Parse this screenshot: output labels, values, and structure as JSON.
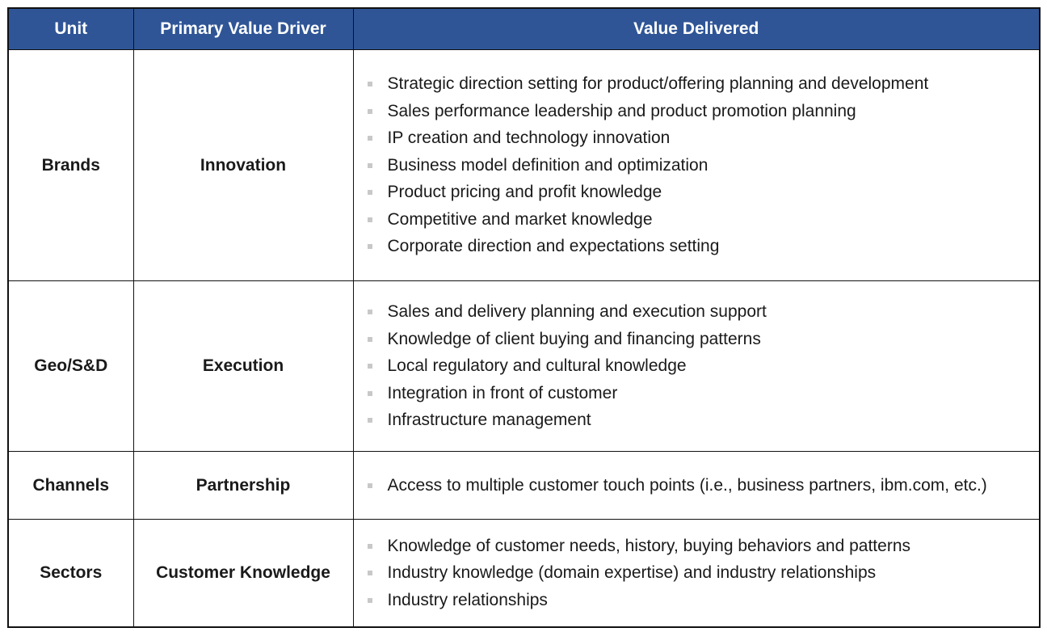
{
  "table": {
    "headers": [
      "Unit",
      "Primary Value Driver",
      "Value Delivered"
    ],
    "rows": [
      {
        "unit": "Brands",
        "driver": "Innovation",
        "values": [
          "Strategic direction setting for product/offering planning and development",
          "Sales performance leadership and product promotion planning",
          "IP creation and technology innovation",
          "Business model definition and optimization",
          "Product pricing and profit knowledge",
          "Competitive and market knowledge",
          "Corporate direction and expectations setting"
        ]
      },
      {
        "unit": "Geo/S&D",
        "driver": "Execution",
        "values": [
          "Sales and delivery planning and execution support",
          "Knowledge of client buying and financing patterns",
          "Local regulatory and cultural knowledge",
          "Integration in front of customer",
          "Infrastructure management"
        ]
      },
      {
        "unit": "Channels",
        "driver": "Partnership",
        "values": [
          "Access to multiple customer touch points (i.e., business partners, ibm.com, etc.)"
        ]
      },
      {
        "unit": "Sectors",
        "driver": "Customer Knowledge",
        "values": [
          "Knowledge of customer needs, history, buying behaviors and patterns",
          "Industry knowledge (domain expertise) and industry relationships",
          "Industry relationships"
        ]
      }
    ]
  },
  "colors": {
    "header_bg": "#2f5596",
    "header_text": "#ffffff",
    "border": "#111111",
    "bullet": "#c8c8c8"
  }
}
